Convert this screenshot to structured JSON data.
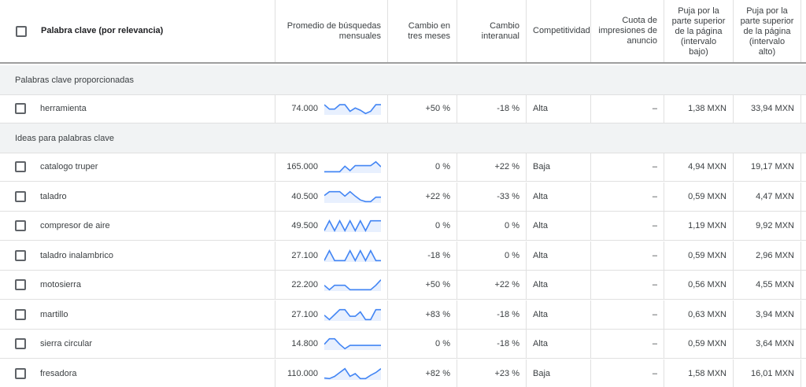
{
  "headers": {
    "keyword": "Palabra clave (por relevancia)",
    "avg_searches": "Promedio de búsquedas mensuales",
    "change_3m": "Cambio en tres meses",
    "change_yoy": "Cambio interanual",
    "competition": "Competitividad",
    "impression_share": "Cuota de impresiones de anuncio",
    "bid_low": "Puja por la parte superior de la página (intervalo bajo)",
    "bid_high": "Puja por la parte superior de la página (intervalo alto)"
  },
  "groups": {
    "provided": "Palabras clave proporcionadas",
    "ideas": "Ideas para palabras clave"
  },
  "colors": {
    "spark_line": "#4285f4",
    "spark_fill": "#e8f0fe",
    "group_bg": "#f1f3f4"
  },
  "provided_rows": [
    {
      "keyword": "herramienta",
      "avg": "74.000",
      "change_3m": "+50 %",
      "change_yoy": "-18 %",
      "competition": "Alta",
      "impression_share": "–",
      "bid_low": "1,38 MXN",
      "bid_high": "33,94 MXN",
      "trend": [
        0.85,
        0.45,
        0.45,
        0.85,
        0.85,
        0.25,
        0.55,
        0.35,
        0.05,
        0.25,
        0.85,
        0.85
      ]
    }
  ],
  "idea_rows": [
    {
      "keyword": "catalogo truper",
      "avg": "165.000",
      "change_3m": "0 %",
      "change_yoy": "+22 %",
      "competition": "Baja",
      "impression_share": "–",
      "bid_low": "4,94 MXN",
      "bid_high": "19,17 MXN",
      "trend": [
        0.05,
        0.05,
        0.05,
        0.05,
        0.55,
        0.15,
        0.6,
        0.6,
        0.6,
        0.6,
        0.95,
        0.5
      ]
    },
    {
      "keyword": "taladro",
      "avg": "40.500",
      "change_3m": "+22 %",
      "change_yoy": "-33 %",
      "competition": "Alta",
      "impression_share": "–",
      "bid_low": "0,59 MXN",
      "bid_high": "4,47 MXN",
      "trend": [
        0.6,
        0.95,
        0.95,
        0.95,
        0.55,
        0.95,
        0.55,
        0.2,
        0.05,
        0.05,
        0.45,
        0.45
      ]
    },
    {
      "keyword": "compresor de aire",
      "avg": "49.500",
      "change_3m": "0 %",
      "change_yoy": "0 %",
      "competition": "Alta",
      "impression_share": "–",
      "bid_low": "1,19 MXN",
      "bid_high": "9,92 MXN",
      "trend": [
        0.05,
        0.95,
        0.05,
        0.95,
        0.05,
        0.95,
        0.05,
        0.95,
        0.05,
        0.95,
        0.95,
        0.95
      ]
    },
    {
      "keyword": "taladro inalambrico",
      "avg": "27.100",
      "change_3m": "-18 %",
      "change_yoy": "0 %",
      "competition": "Alta",
      "impression_share": "–",
      "bid_low": "0,59 MXN",
      "bid_high": "2,96 MXN",
      "trend": [
        0.05,
        0.95,
        0.05,
        0.05,
        0.05,
        0.95,
        0.05,
        0.95,
        0.05,
        0.95,
        0.05,
        0.05
      ]
    },
    {
      "keyword": "motosierra",
      "avg": "22.200",
      "change_3m": "+50 %",
      "change_yoy": "+22 %",
      "competition": "Alta",
      "impression_share": "–",
      "bid_low": "0,56 MXN",
      "bid_high": "4,55 MXN",
      "trend": [
        0.45,
        0.05,
        0.45,
        0.45,
        0.45,
        0.05,
        0.05,
        0.05,
        0.05,
        0.05,
        0.45,
        0.95
      ]
    },
    {
      "keyword": "martillo",
      "avg": "27.100",
      "change_3m": "+83 %",
      "change_yoy": "-18 %",
      "competition": "Alta",
      "impression_share": "–",
      "bid_low": "0,63 MXN",
      "bid_high": "3,94 MXN",
      "trend": [
        0.45,
        0.05,
        0.5,
        0.95,
        0.95,
        0.35,
        0.35,
        0.75,
        0.05,
        0.05,
        0.95,
        0.95
      ]
    },
    {
      "keyword": "sierra circular",
      "avg": "14.800",
      "change_3m": "0 %",
      "change_yoy": "-18 %",
      "competition": "Alta",
      "impression_share": "–",
      "bid_low": "0,59 MXN",
      "bid_high": "3,64 MXN",
      "trend": [
        0.45,
        0.95,
        0.95,
        0.45,
        0.05,
        0.35,
        0.35,
        0.35,
        0.35,
        0.35,
        0.35,
        0.35
      ]
    },
    {
      "keyword": "fresadora",
      "avg": "110.000",
      "change_3m": "+82 %",
      "change_yoy": "+23 %",
      "competition": "Baja",
      "impression_share": "–",
      "bid_low": "1,58 MXN",
      "bid_high": "16,01 MXN",
      "trend": [
        0.1,
        0.05,
        0.25,
        0.6,
        0.95,
        0.25,
        0.5,
        0.05,
        0.05,
        0.35,
        0.6,
        0.95
      ]
    }
  ]
}
